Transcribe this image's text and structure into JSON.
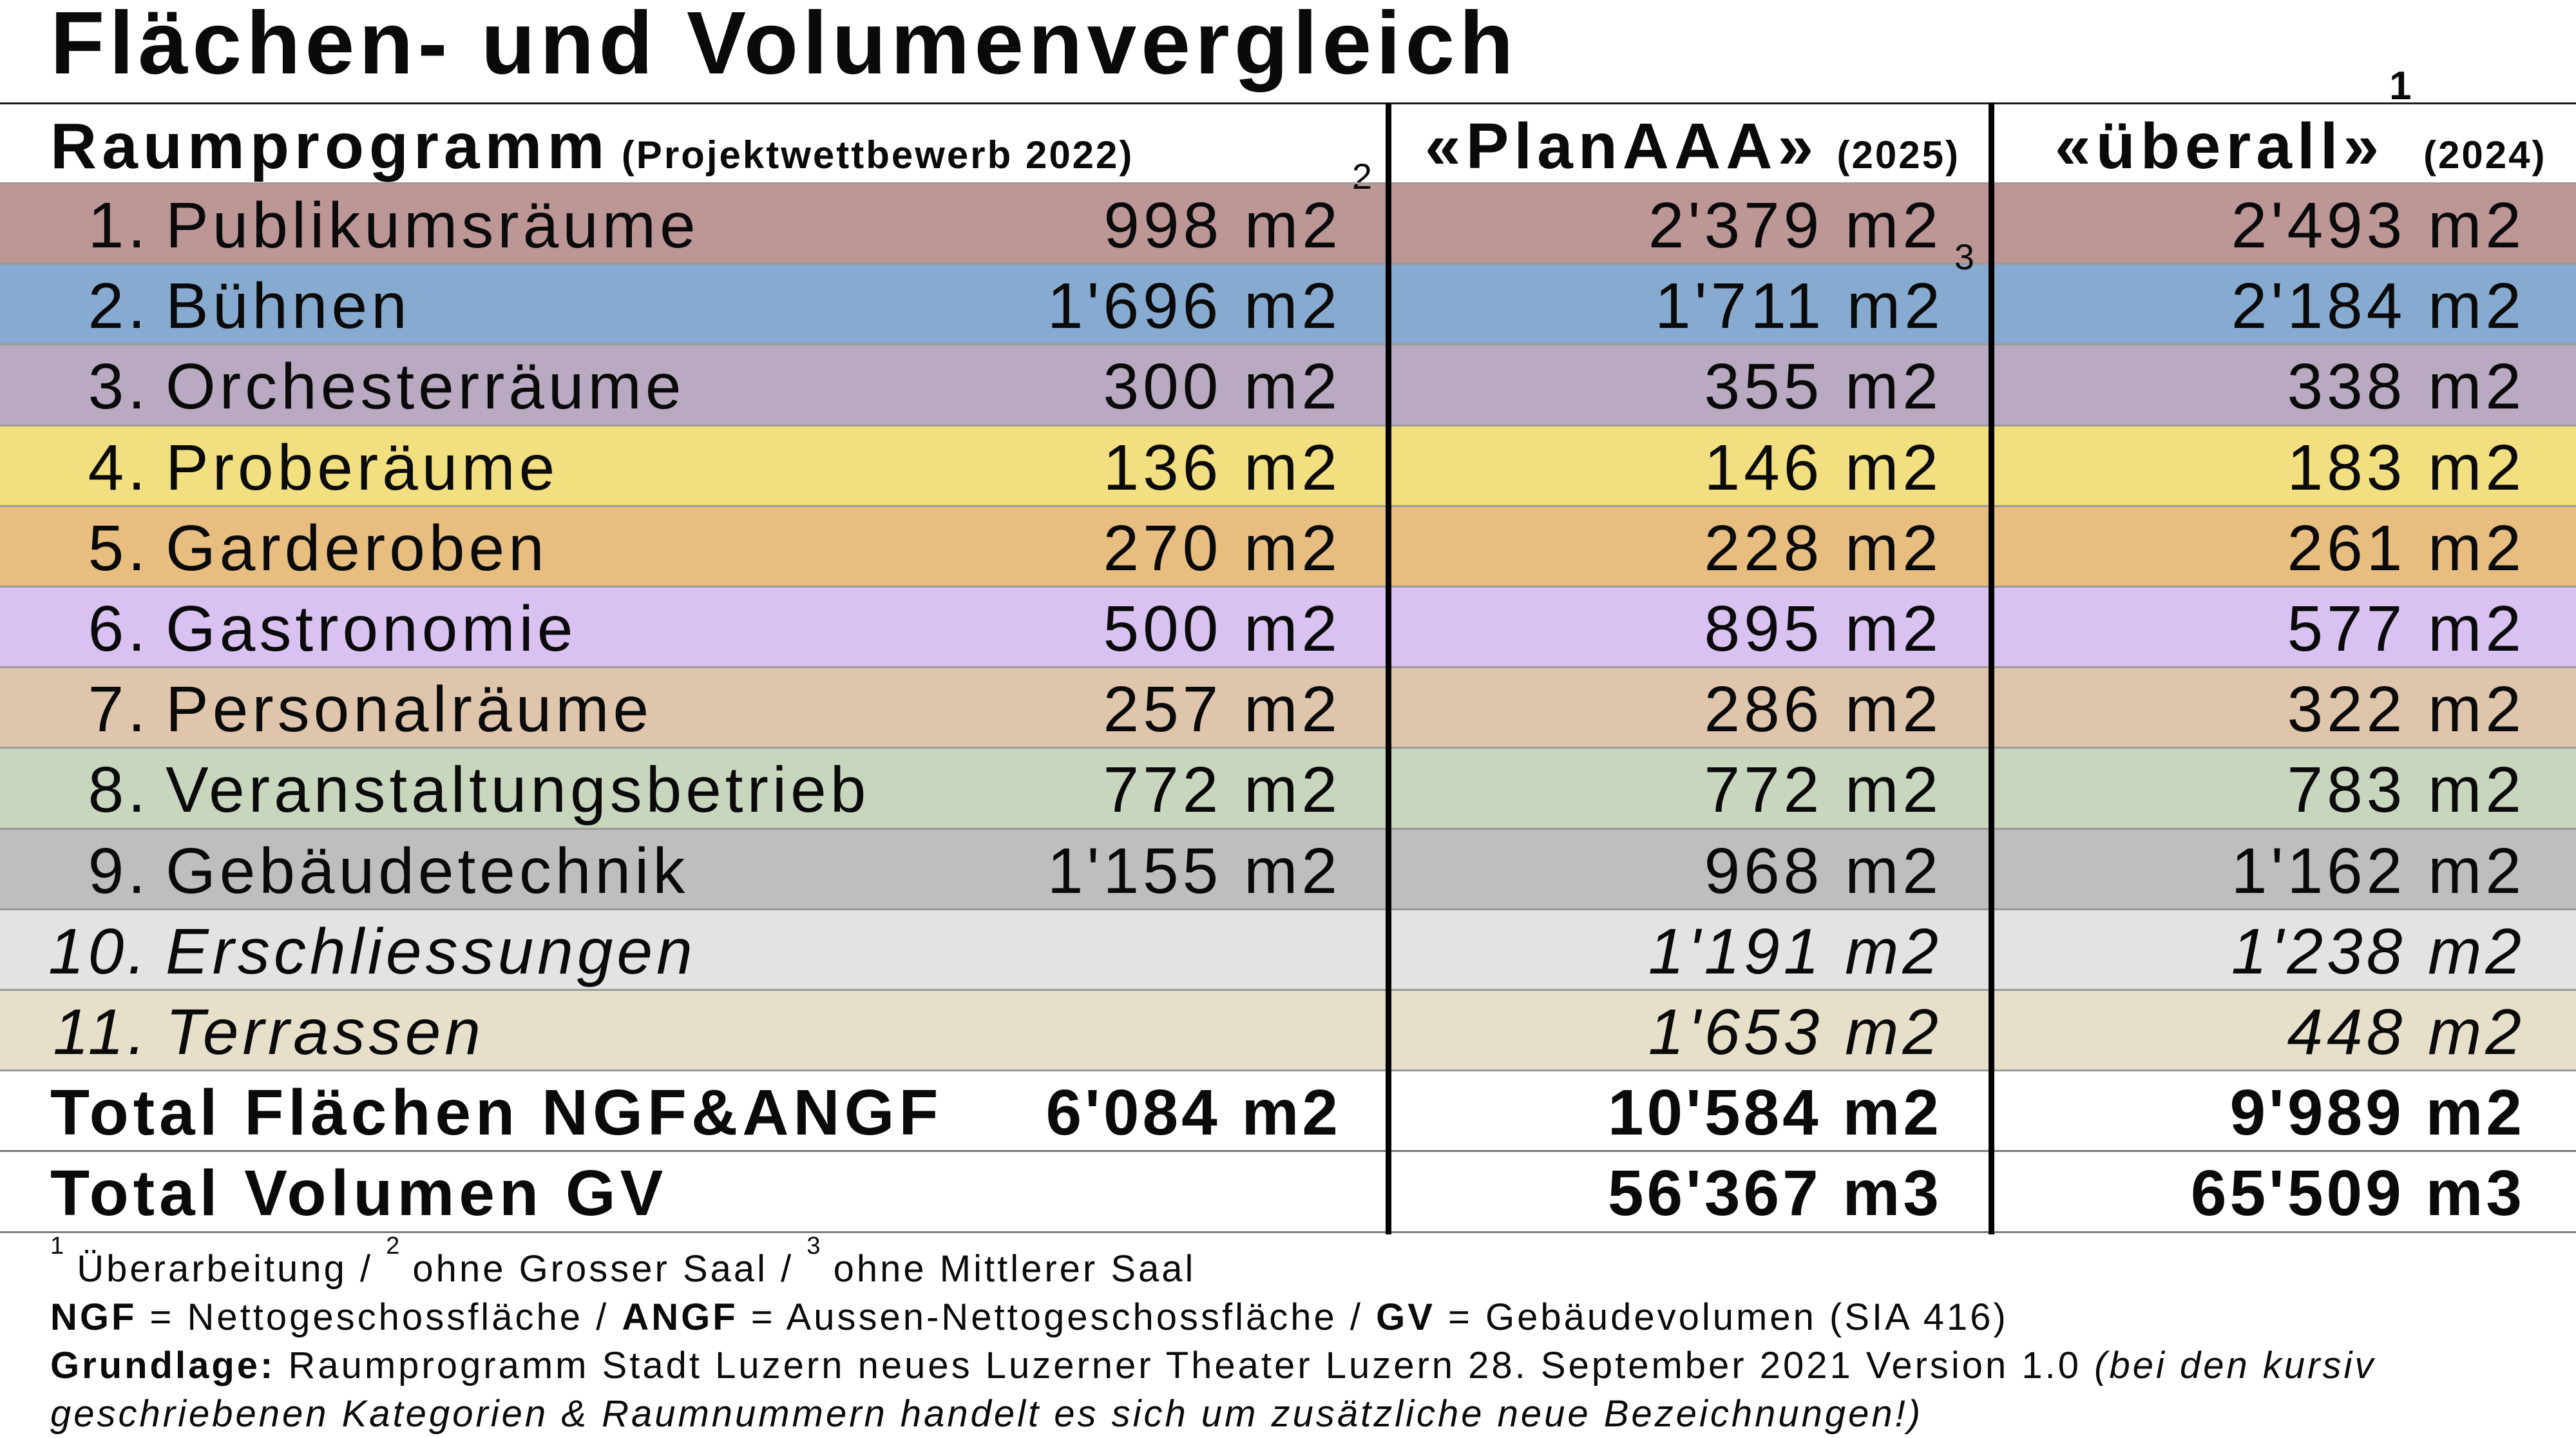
{
  "title": "Flächen- und Volumenvergleich",
  "header": {
    "col1_title": "Raumprogramm",
    "col1_sub": "(Projektwettbewerb 2022)",
    "col2_title": "«PlanAAA»",
    "col2_sub": "(2025)",
    "col3_title": "«überall»",
    "col3_sup": "1",
    "col3_sub": "(2024)"
  },
  "rows": [
    {
      "num": "1.",
      "name": "Publikumsräume",
      "v1": "998 m2",
      "v1_sup": "2",
      "v2": "2'379 m2",
      "v2_sup": "",
      "v3": "2'493 m2",
      "color": "#bd9696"
    },
    {
      "num": "2.",
      "name": "Bühnen",
      "v1": "1'696 m2",
      "v1_sup": "",
      "v2": "1'711 m2",
      "v2_sup": "3",
      "v3": "2'184 m2",
      "color": "#87abd0"
    },
    {
      "num": "3.",
      "name": "Orchesterräume",
      "v1": "300 m2",
      "v1_sup": "",
      "v2": "355 m2",
      "v2_sup": "",
      "v3": "338 m2",
      "color": "#b9a9c1"
    },
    {
      "num": "4.",
      "name": "Proberäume",
      "v1": "136 m2",
      "v1_sup": "",
      "v2": "146 m2",
      "v2_sup": "",
      "v3": "183 m2",
      "color": "#f2df80"
    },
    {
      "num": "5.",
      "name": "Garderoben",
      "v1": "270 m2",
      "v1_sup": "",
      "v2": "228 m2",
      "v2_sup": "",
      "v3": "261 m2",
      "color": "#e8bd80"
    },
    {
      "num": "6.",
      "name": "Gastronomie",
      "v1": "500 m2",
      "v1_sup": "",
      "v2": "895 m2",
      "v2_sup": "",
      "v3": "577 m2",
      "color": "#d9c1f2"
    },
    {
      "num": "7.",
      "name": "Personalräume",
      "v1": "257 m2",
      "v1_sup": "",
      "v2": "286 m2",
      "v2_sup": "",
      "v3": "322 m2",
      "color": "#dfc5ab"
    },
    {
      "num": "8.",
      "name": "Veranstaltungsbetrieb",
      "v1": "772 m2",
      "v1_sup": "",
      "v2": "772 m2",
      "v2_sup": "",
      "v3": "783 m2",
      "color": "#c7d6bd"
    },
    {
      "num": "9.",
      "name": "Gebäudetechnik",
      "v1": "1'155 m2",
      "v1_sup": "",
      "v2": "968 m2",
      "v2_sup": "",
      "v3": "1'162 m2",
      "color": "#bebebe"
    },
    {
      "num": "10.",
      "name": "Erschliessungen",
      "v1": "",
      "v1_sup": "",
      "v2": "1'191 m2",
      "v2_sup": "",
      "v3": "1'238 m2",
      "color": "#e3e3e3",
      "italic": true
    },
    {
      "num": "11.",
      "name": "Terrassen",
      "v1": "",
      "v1_sup": "",
      "v2": "1'653 m2",
      "v2_sup": "",
      "v3": "448 m2",
      "color": "#e6dfca",
      "italic": true
    }
  ],
  "totals": [
    {
      "label": "Total Flächen NGF&ANGF",
      "v1": "6'084 m2",
      "v2": "10'584 m2",
      "v3": "9'989 m2"
    },
    {
      "label": "Total Volumen GV",
      "v1": "",
      "v2": "56'367 m3",
      "v3": "65'509 m3"
    }
  ],
  "footnotes": {
    "line1": {
      "s1": "1",
      "t1": " Überarbeitung / ",
      "s2": "2",
      "t2": " ohne Grosser Saal / ",
      "s3": "3",
      "t3": " ohne Mittlerer Saal"
    },
    "line2": {
      "b1": "NGF",
      "t1": " = Nettogeschossfläche / ",
      "b2": "ANGF",
      "t2": " = Aussen-Nettogeschossfläche / ",
      "b3": "GV",
      "t3": " = Gebäudevolumen (SIA 416)"
    },
    "line3": {
      "b1": "Grundlage:",
      "t1": " Raumprogramm Stadt Luzern neues Luzerner Theater Luzern 28. September 2021 Version 1.0 ",
      "i1": "(bei den kursiv"
    },
    "line4": {
      "i1": "geschriebenen Kategorien & Raumnummern handelt es sich um zusätzliche neue Bezeichnungen!)"
    }
  }
}
